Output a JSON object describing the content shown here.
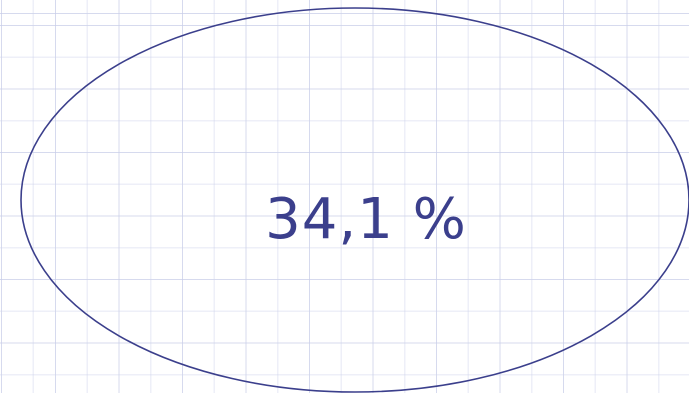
{
  "diagram": {
    "ellipse_label": "34,1 %",
    "colors": {
      "outline": "#3b3f8c",
      "text": "#3b3f8c",
      "grid": "#bec3e1"
    }
  }
}
